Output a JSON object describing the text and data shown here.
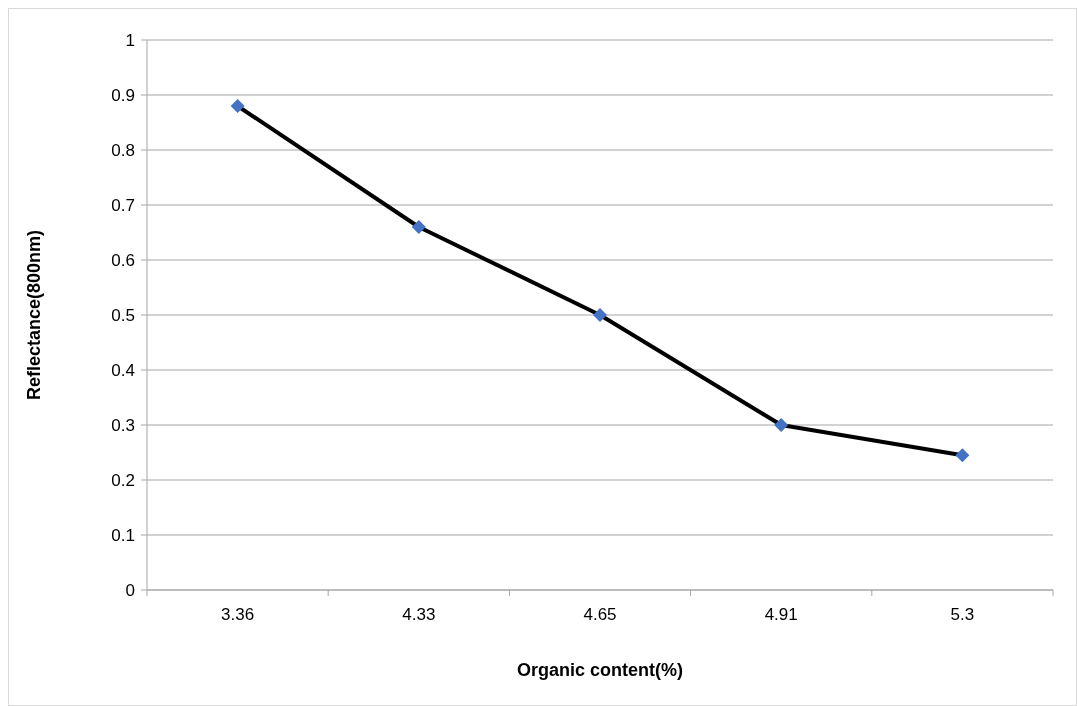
{
  "chart_data": {
    "type": "line",
    "xlabel": "Organic content(%)",
    "ylabel": "Reflectance(800nm)",
    "categories": [
      "3.36",
      "4.33",
      "4.65",
      "4.91",
      "5.3"
    ],
    "series": [
      {
        "color": "#4472c4",
        "values": [
          0.88,
          0.66,
          0.5,
          0.3,
          0.245
        ]
      }
    ],
    "ylim": [
      0,
      1
    ],
    "yticks": [
      0,
      0.1,
      0.2,
      0.3,
      0.4,
      0.5,
      0.6,
      0.7,
      0.8,
      0.9,
      1
    ],
    "grid": "y",
    "marker": "diamond",
    "line_style": "solid"
  }
}
